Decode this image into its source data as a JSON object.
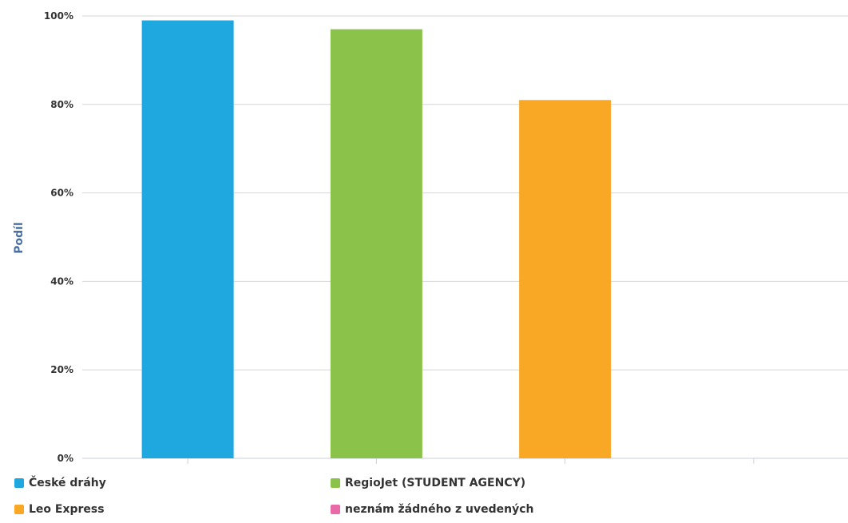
{
  "chart_data": {
    "type": "bar",
    "ylabel": "Podíl",
    "ylim": [
      0,
      100
    ],
    "yticks": [
      "0%",
      "20%",
      "40%",
      "60%",
      "80%",
      "100%"
    ],
    "grid": true,
    "legend_position": "bottom",
    "series": [
      {
        "name": "České dráhy",
        "value": 99,
        "color": "#1fa8df"
      },
      {
        "name": "RegioJet (STUDENT AGENCY)",
        "value": 97,
        "color": "#8bc34a"
      },
      {
        "name": "Leo Express",
        "value": 81,
        "color": "#f9a825"
      },
      {
        "name": "neznám žádného z uvedených",
        "value": 0,
        "color": "#e96aa8"
      }
    ]
  }
}
